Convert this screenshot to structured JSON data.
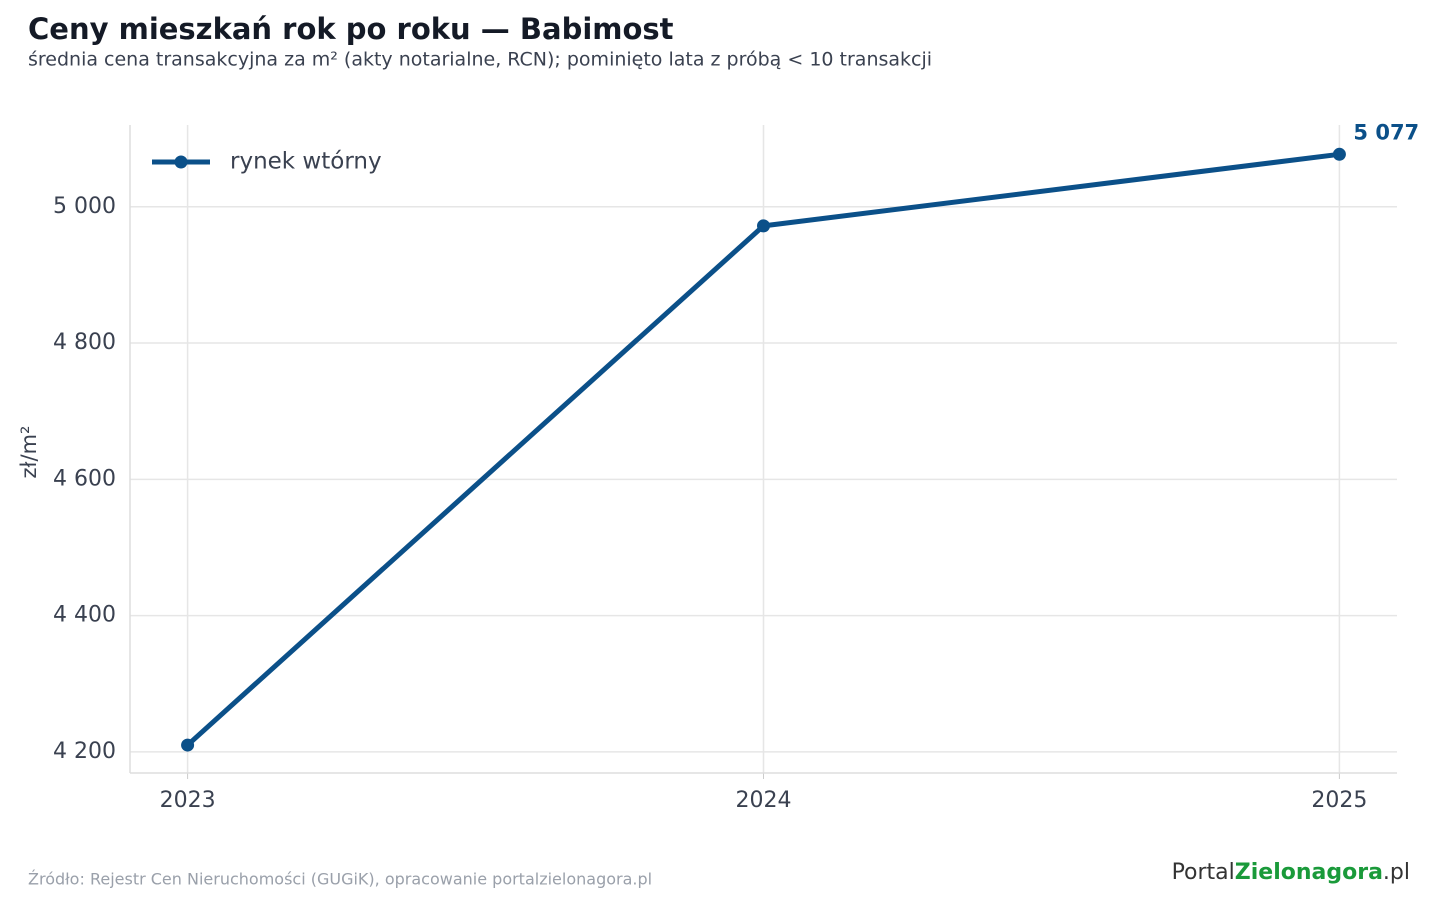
{
  "chart_data": {
    "type": "line",
    "title": "Ceny mieszkań rok po roku — Babimost",
    "subtitle": "średnia cena transakcyjna za m² (akty notarialne, RCN); pominięto lata z próbą < 10 transakcji",
    "y_label": "zł/m²",
    "x": [
      2023,
      2024,
      2025
    ],
    "series": [
      {
        "name": "rynek wtórny",
        "color": "#0b5089",
        "values": [
          4210,
          4972,
          5077
        ],
        "value_labels": [
          null,
          null,
          "5 077"
        ]
      }
    ],
    "xlim": [
      2022.9,
      2025.1
    ],
    "xticks": [
      2023,
      2024,
      2025
    ],
    "ylim": [
      4169,
      5120
    ],
    "yticks": [
      {
        "value": 4200,
        "label": "4 200"
      },
      {
        "value": 4400,
        "label": "4 400"
      },
      {
        "value": 4600,
        "label": "4 600"
      },
      {
        "value": 4800,
        "label": "4 800"
      },
      {
        "value": 5000,
        "label": "5 000"
      }
    ],
    "grid": true,
    "legend": "upper left",
    "source": "Źródło: Rejestr Cen Nieruchomości (GUGiK), opracowanie portalzielonagora.pl",
    "logo_parts": [
      "Portal",
      "Zielonagora",
      ".pl"
    ]
  }
}
